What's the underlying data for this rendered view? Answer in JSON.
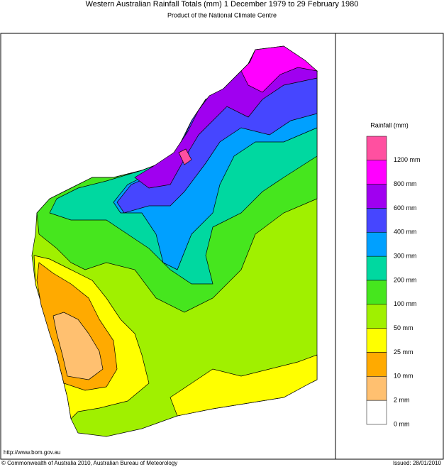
{
  "header": {
    "title": "Western Australian Rainfall Totals (mm) 1 December 1979 to 29 February 1980",
    "subtitle": "Product of the National Climate Centre"
  },
  "legend": {
    "title": "Rainfall (mm)",
    "items": [
      {
        "color": "#ff50a0",
        "label": "1200 mm"
      },
      {
        "color": "#ff00ff",
        "label": "800 mm"
      },
      {
        "color": "#a000f0",
        "label": "600 mm"
      },
      {
        "color": "#4646ff",
        "label": "400 mm"
      },
      {
        "color": "#00a0ff",
        "label": "300 mm"
      },
      {
        "color": "#00d8a0",
        "label": "200 mm"
      },
      {
        "color": "#46e61e",
        "label": "100 mm"
      },
      {
        "color": "#a0f000",
        "label": "50 mm"
      },
      {
        "color": "#ffff00",
        "label": "25 mm"
      },
      {
        "color": "#ffaa00",
        "label": "10 mm"
      },
      {
        "color": "#ffc070",
        "label": "2 mm"
      },
      {
        "color": "#ffffff",
        "label": "0 mm"
      }
    ]
  },
  "footer": {
    "url": "http://www.bom.gov.au",
    "copyright": "© Commonwealth of Australia 2010, Australian Bureau of Meteorology",
    "issued": "Issued: 28/01/2010"
  }
}
